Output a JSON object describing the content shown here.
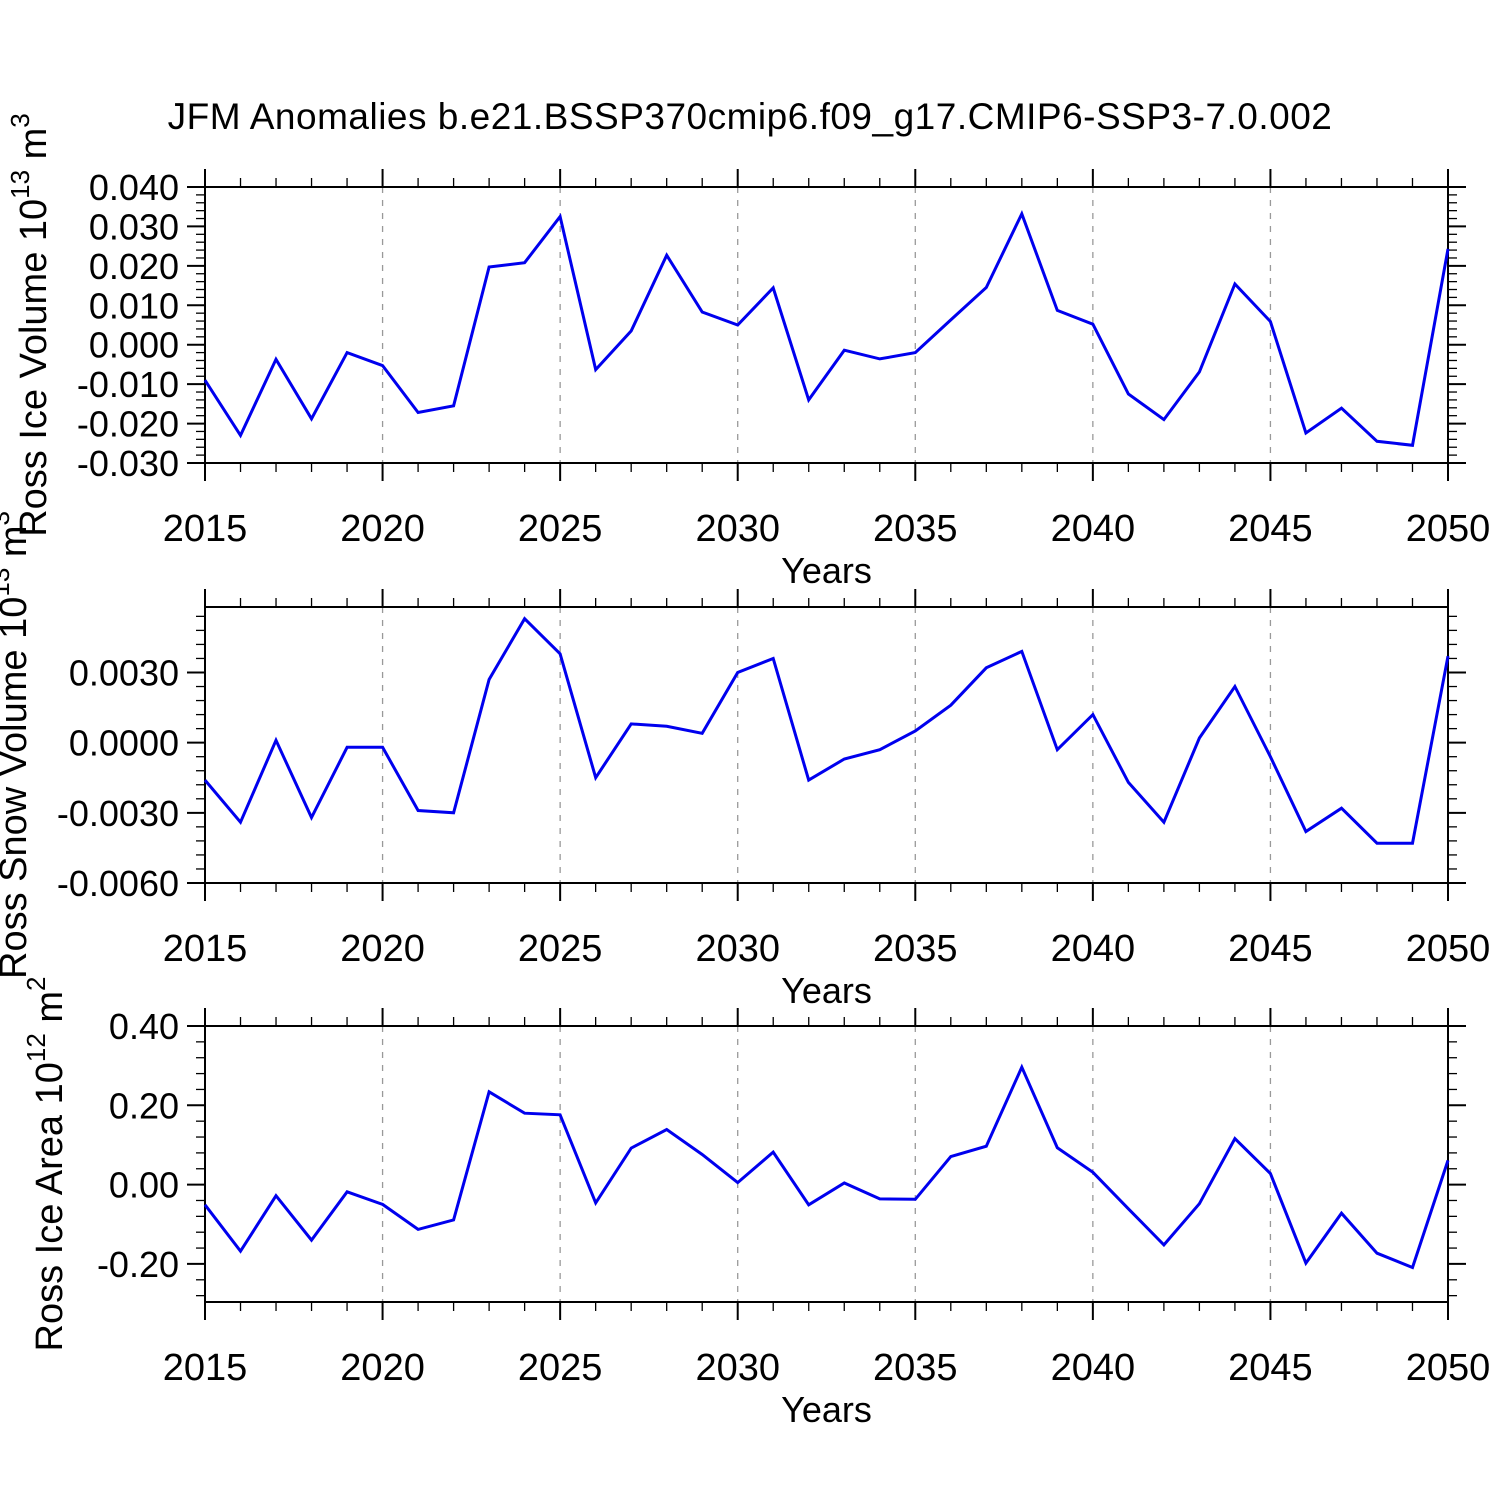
{
  "title": "JFM Anomalies b.e21.BSSP370cmip6.f09_g17.CMIP6-SSP3-7.0.002",
  "colors": {
    "line": "#0000ee",
    "frame": "#000000",
    "grid": "#999999",
    "text": "#000000",
    "background": "#ffffff"
  },
  "x_axis": {
    "label": "Years",
    "min": 2015,
    "max": 2050,
    "major_ticks": [
      2015,
      2020,
      2025,
      2030,
      2035,
      2040,
      2045,
      2050
    ],
    "major_tick_labels": [
      "2015",
      "2020",
      "2025",
      "2030",
      "2035",
      "2040",
      "2045",
      "2050"
    ],
    "minor_step": 1,
    "grid_years": [
      2020,
      2025,
      2030,
      2035,
      2040,
      2045
    ]
  },
  "chart_data": [
    {
      "type": "line",
      "ylabel": "Ross Ice Volume 10^13 m^3",
      "ylabel_parts": [
        {
          "text": "Ross Ice Volume 10"
        },
        {
          "text": "13",
          "sup": true
        },
        {
          "text": " m"
        },
        {
          "text": "3",
          "sup": true
        }
      ],
      "xlabel": "Years",
      "ylim": [
        -0.03,
        0.04
      ],
      "y_minor_step": 0.002,
      "yticks": [
        {
          "v": 0.04,
          "label": "0.040"
        },
        {
          "v": 0.03,
          "label": "0.030"
        },
        {
          "v": 0.02,
          "label": "0.020"
        },
        {
          "v": 0.01,
          "label": "0.010"
        },
        {
          "v": 0.0,
          "label": "0.000"
        },
        {
          "v": -0.01,
          "label": "-0.010"
        },
        {
          "v": -0.02,
          "label": "-0.020"
        },
        {
          "v": -0.03,
          "label": "-0.030"
        }
      ],
      "x": [
        2015,
        2016,
        2017,
        2018,
        2019,
        2020,
        2021,
        2022,
        2023,
        2024,
        2025,
        2026,
        2027,
        2028,
        2029,
        2030,
        2031,
        2032,
        2033,
        2034,
        2035,
        2036,
        2037,
        2038,
        2039,
        2040,
        2041,
        2042,
        2043,
        2044,
        2045,
        2046,
        2047,
        2048,
        2049,
        2050
      ],
      "values": [
        -0.009,
        -0.023,
        -0.0037,
        -0.0188,
        -0.002,
        -0.0053,
        -0.0172,
        -0.0155,
        0.0197,
        0.0208,
        0.0325,
        -0.0063,
        0.0035,
        0.0227,
        0.0083,
        0.005,
        0.0144,
        -0.014,
        -0.0014,
        -0.0036,
        -0.002,
        0.0063,
        0.0145,
        0.0332,
        0.0087,
        0.0052,
        -0.0125,
        -0.019,
        -0.0069,
        0.0154,
        0.0059,
        -0.0224,
        -0.0161,
        -0.0245,
        -0.0255,
        0.0243
      ]
    },
    {
      "type": "line",
      "ylabel": "Ross Snow Volume 10^13 m^3",
      "ylabel_parts": [
        {
          "text": "Ross Snow Volume 10"
        },
        {
          "text": "13",
          "sup": true
        },
        {
          "text": " m"
        },
        {
          "text": "3",
          "sup": true
        }
      ],
      "xlabel": "Years",
      "ylim": [
        -0.006,
        0.0058
      ],
      "y_minor_step": 0.0006,
      "yticks": [
        {
          "v": 0.003,
          "label": "0.0030"
        },
        {
          "v": 0.0,
          "label": "0.0000"
        },
        {
          "v": -0.003,
          "label": "-0.0030"
        },
        {
          "v": -0.006,
          "label": "-0.0060"
        }
      ],
      "x": [
        2015,
        2016,
        2017,
        2018,
        2019,
        2020,
        2021,
        2022,
        2023,
        2024,
        2025,
        2026,
        2027,
        2028,
        2029,
        2030,
        2031,
        2032,
        2033,
        2034,
        2035,
        2036,
        2037,
        2038,
        2039,
        2040,
        2041,
        2042,
        2043,
        2044,
        2045,
        2046,
        2047,
        2048,
        2049,
        2050
      ],
      "values": [
        -0.0016,
        -0.0034,
        0.0001,
        -0.0032,
        -0.0002,
        -0.0002,
        -0.0029,
        -0.003,
        0.0027,
        0.0053,
        0.0038,
        -0.0015,
        0.0008,
        0.0007,
        0.0004,
        0.003,
        0.0036,
        -0.0016,
        -0.0007,
        -0.0003,
        0.0005,
        0.0016,
        0.0032,
        0.0039,
        -0.0003,
        0.0012,
        -0.0017,
        -0.0034,
        0.0002,
        0.0024,
        -0.0006,
        -0.0038,
        -0.0028,
        -0.0043,
        -0.0043,
        0.0037
      ]
    },
    {
      "type": "line",
      "ylabel": "Ross Ice Area 10^12 m^2",
      "ylabel_parts": [
        {
          "text": "Ross Ice Area 10"
        },
        {
          "text": "12",
          "sup": true
        },
        {
          "text": " m"
        },
        {
          "text": "2",
          "sup": true
        }
      ],
      "xlabel": "Years",
      "ylim": [
        -0.296,
        0.4
      ],
      "y_minor_step": 0.04,
      "yticks": [
        {
          "v": 0.4,
          "label": "0.40"
        },
        {
          "v": 0.2,
          "label": "0.20"
        },
        {
          "v": 0.0,
          "label": "0.00"
        },
        {
          "v": -0.2,
          "label": "-0.20"
        }
      ],
      "x": [
        2015,
        2016,
        2017,
        2018,
        2019,
        2020,
        2021,
        2022,
        2023,
        2024,
        2025,
        2026,
        2027,
        2028,
        2029,
        2030,
        2031,
        2032,
        2033,
        2034,
        2035,
        2036,
        2037,
        2038,
        2039,
        2040,
        2041,
        2042,
        2043,
        2044,
        2045,
        2046,
        2047,
        2048,
        2049,
        2050
      ],
      "values": [
        -0.051,
        -0.168,
        -0.028,
        -0.14,
        -0.018,
        -0.05,
        -0.113,
        -0.089,
        0.234,
        0.18,
        0.176,
        -0.046,
        0.092,
        0.139,
        0.076,
        0.005,
        0.082,
        -0.051,
        0.004,
        -0.036,
        -0.037,
        0.071,
        0.097,
        0.296,
        0.093,
        0.031,
        -0.061,
        -0.152,
        -0.048,
        0.116,
        0.028,
        -0.198,
        -0.072,
        -0.173,
        -0.209,
        0.061
      ]
    }
  ]
}
